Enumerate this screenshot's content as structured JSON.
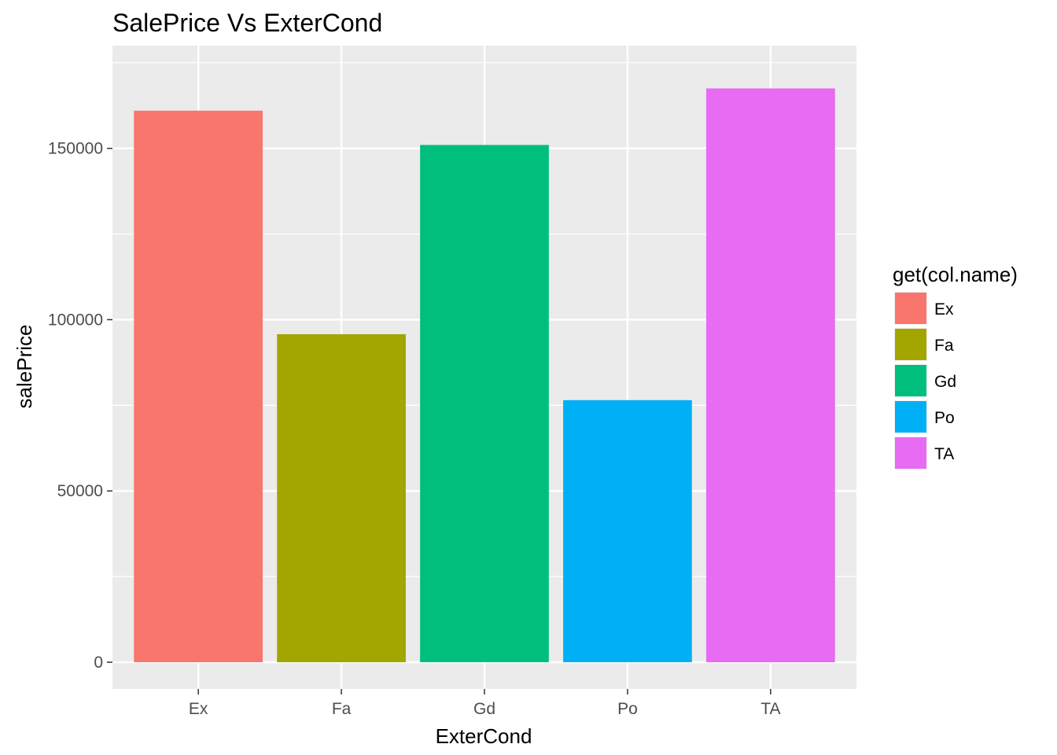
{
  "chart_data": {
    "type": "bar",
    "title": "SalePrice Vs ExterCond",
    "xlabel": "ExterCond",
    "ylabel": "salePrice",
    "categories": [
      "Ex",
      "Fa",
      "Gd",
      "Po",
      "TA"
    ],
    "values": [
      161000,
      95750,
      151000,
      76500,
      167500
    ],
    "colors": [
      "#F8766D",
      "#A3A500",
      "#00BF7D",
      "#00B0F6",
      "#E76BF3"
    ],
    "ylim": [
      -7800,
      180000
    ],
    "yticks": [
      0,
      50000,
      100000,
      150000
    ],
    "ytick_labels": [
      "0",
      "50000",
      "100000",
      "150000"
    ],
    "grid": true,
    "panel_background": "#EBEBEB",
    "legend": {
      "title": "get(col.name)",
      "placement": "right",
      "entries": [
        "Ex",
        "Fa",
        "Gd",
        "Po",
        "TA"
      ]
    }
  }
}
